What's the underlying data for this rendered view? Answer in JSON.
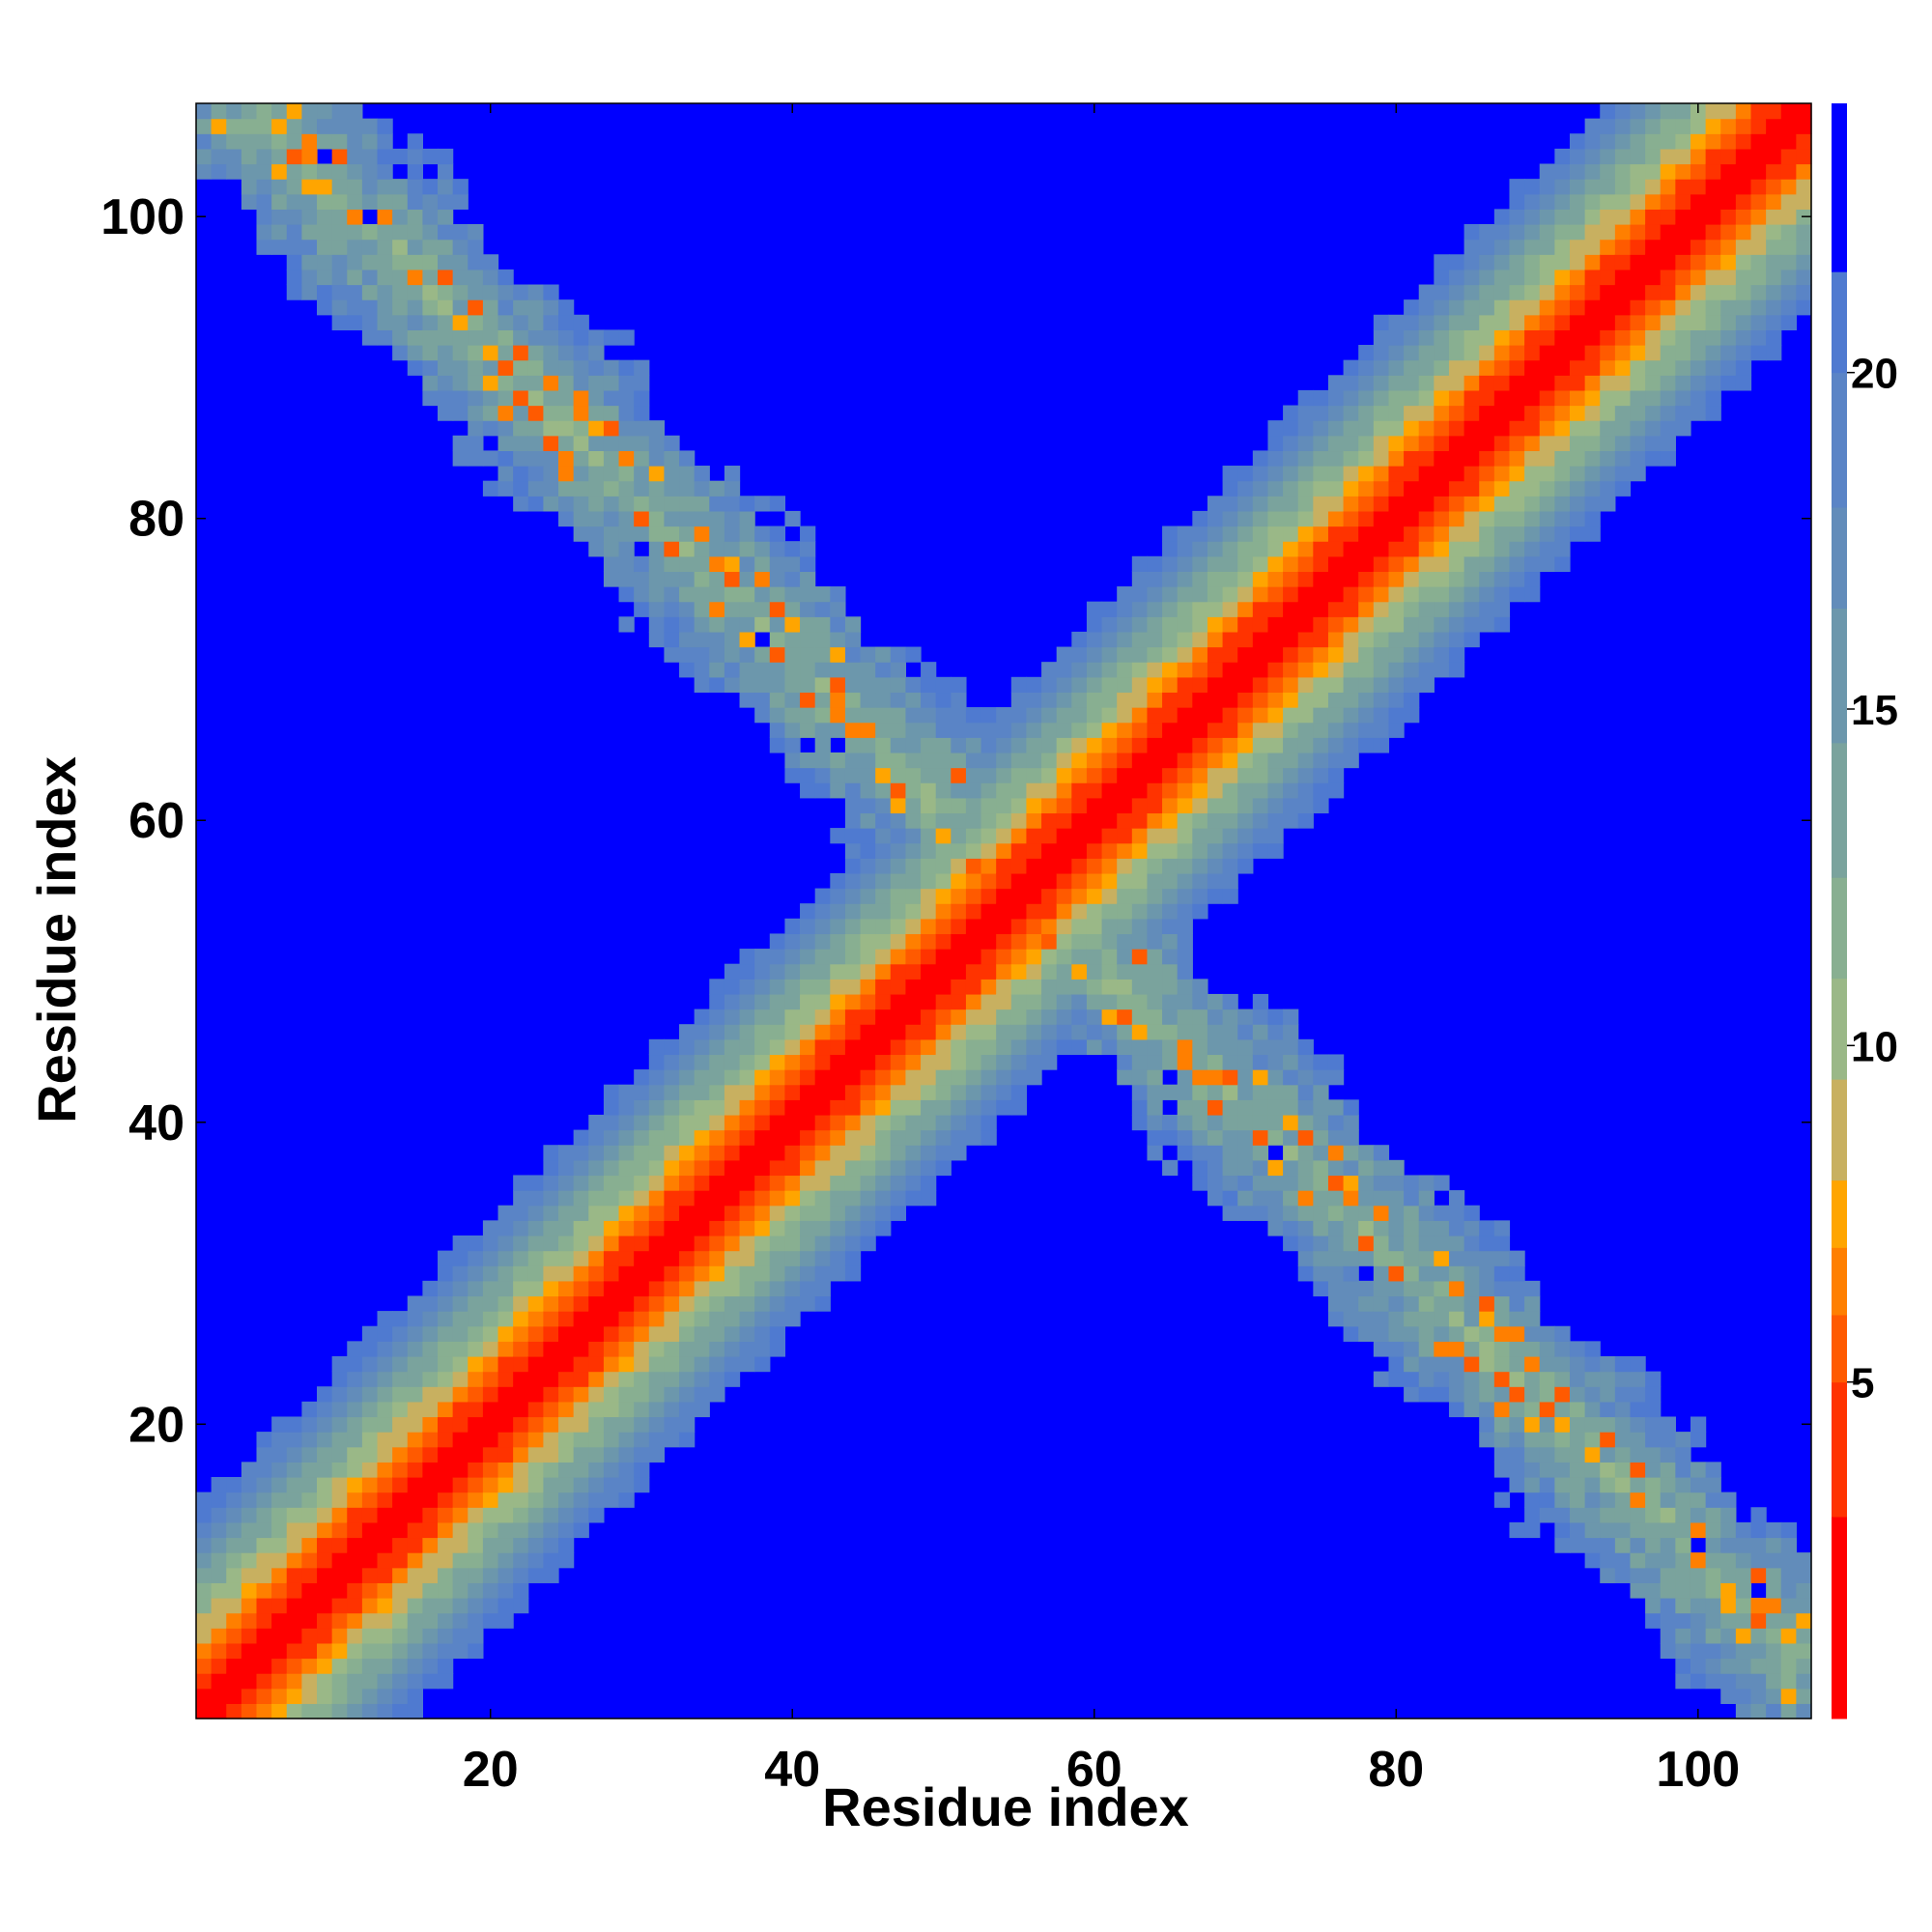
{
  "chart_data": {
    "type": "heatmap",
    "title": "",
    "xlabel": "Residue index",
    "ylabel": "Residue index",
    "n_residues": 107,
    "xlim": [
      0.5,
      107.5
    ],
    "ylim": [
      0.5,
      107.5
    ],
    "xticks": [
      20,
      40,
      60,
      80,
      100
    ],
    "yticks": [
      20,
      40,
      60,
      80,
      100
    ],
    "colorbar": {
      "ticks": [
        5,
        10,
        15,
        20
      ],
      "range": [
        0,
        24
      ],
      "levels": [
        {
          "min": 0,
          "max": 3,
          "color": "#ff0000"
        },
        {
          "min": 3,
          "max": 5,
          "color": "#ff3300"
        },
        {
          "min": 5,
          "max": 6,
          "color": "#ff5a00"
        },
        {
          "min": 6,
          "max": 7,
          "color": "#ff7f00"
        },
        {
          "min": 7,
          "max": 8,
          "color": "#ffa500"
        },
        {
          "min": 8,
          "max": 9.5,
          "color": "#c8b060"
        },
        {
          "min": 9.5,
          "max": 11,
          "color": "#9ab887"
        },
        {
          "min": 11,
          "max": 12.5,
          "color": "#88af91"
        },
        {
          "min": 12.5,
          "max": 14.5,
          "color": "#7aa39d"
        },
        {
          "min": 14.5,
          "max": 16.5,
          "color": "#6c97ac"
        },
        {
          "min": 16.5,
          "max": 18,
          "color": "#628cba"
        },
        {
          "min": 18,
          "max": 20,
          "color": "#5a84c6"
        },
        {
          "min": 20,
          "max": 21.5,
          "color": "#4f7ad0"
        },
        {
          "min": 21.5,
          "max": 24,
          "color": "#0000ff"
        }
      ]
    },
    "structure": {
      "description_of_values": "distance map between residues i and j (colour = distance)",
      "main_diagonal_band": "values 0 on i=j rising smoothly with |i-j|, reaching the max color beyond |i-j| ≈ 14",
      "antidiagonal_band": "contact band along i+j ≈ 111 with mixed 6–20 values, half-width ≈ 7–9 residues, with sparse orange contacts",
      "background_value": 24
    }
  }
}
